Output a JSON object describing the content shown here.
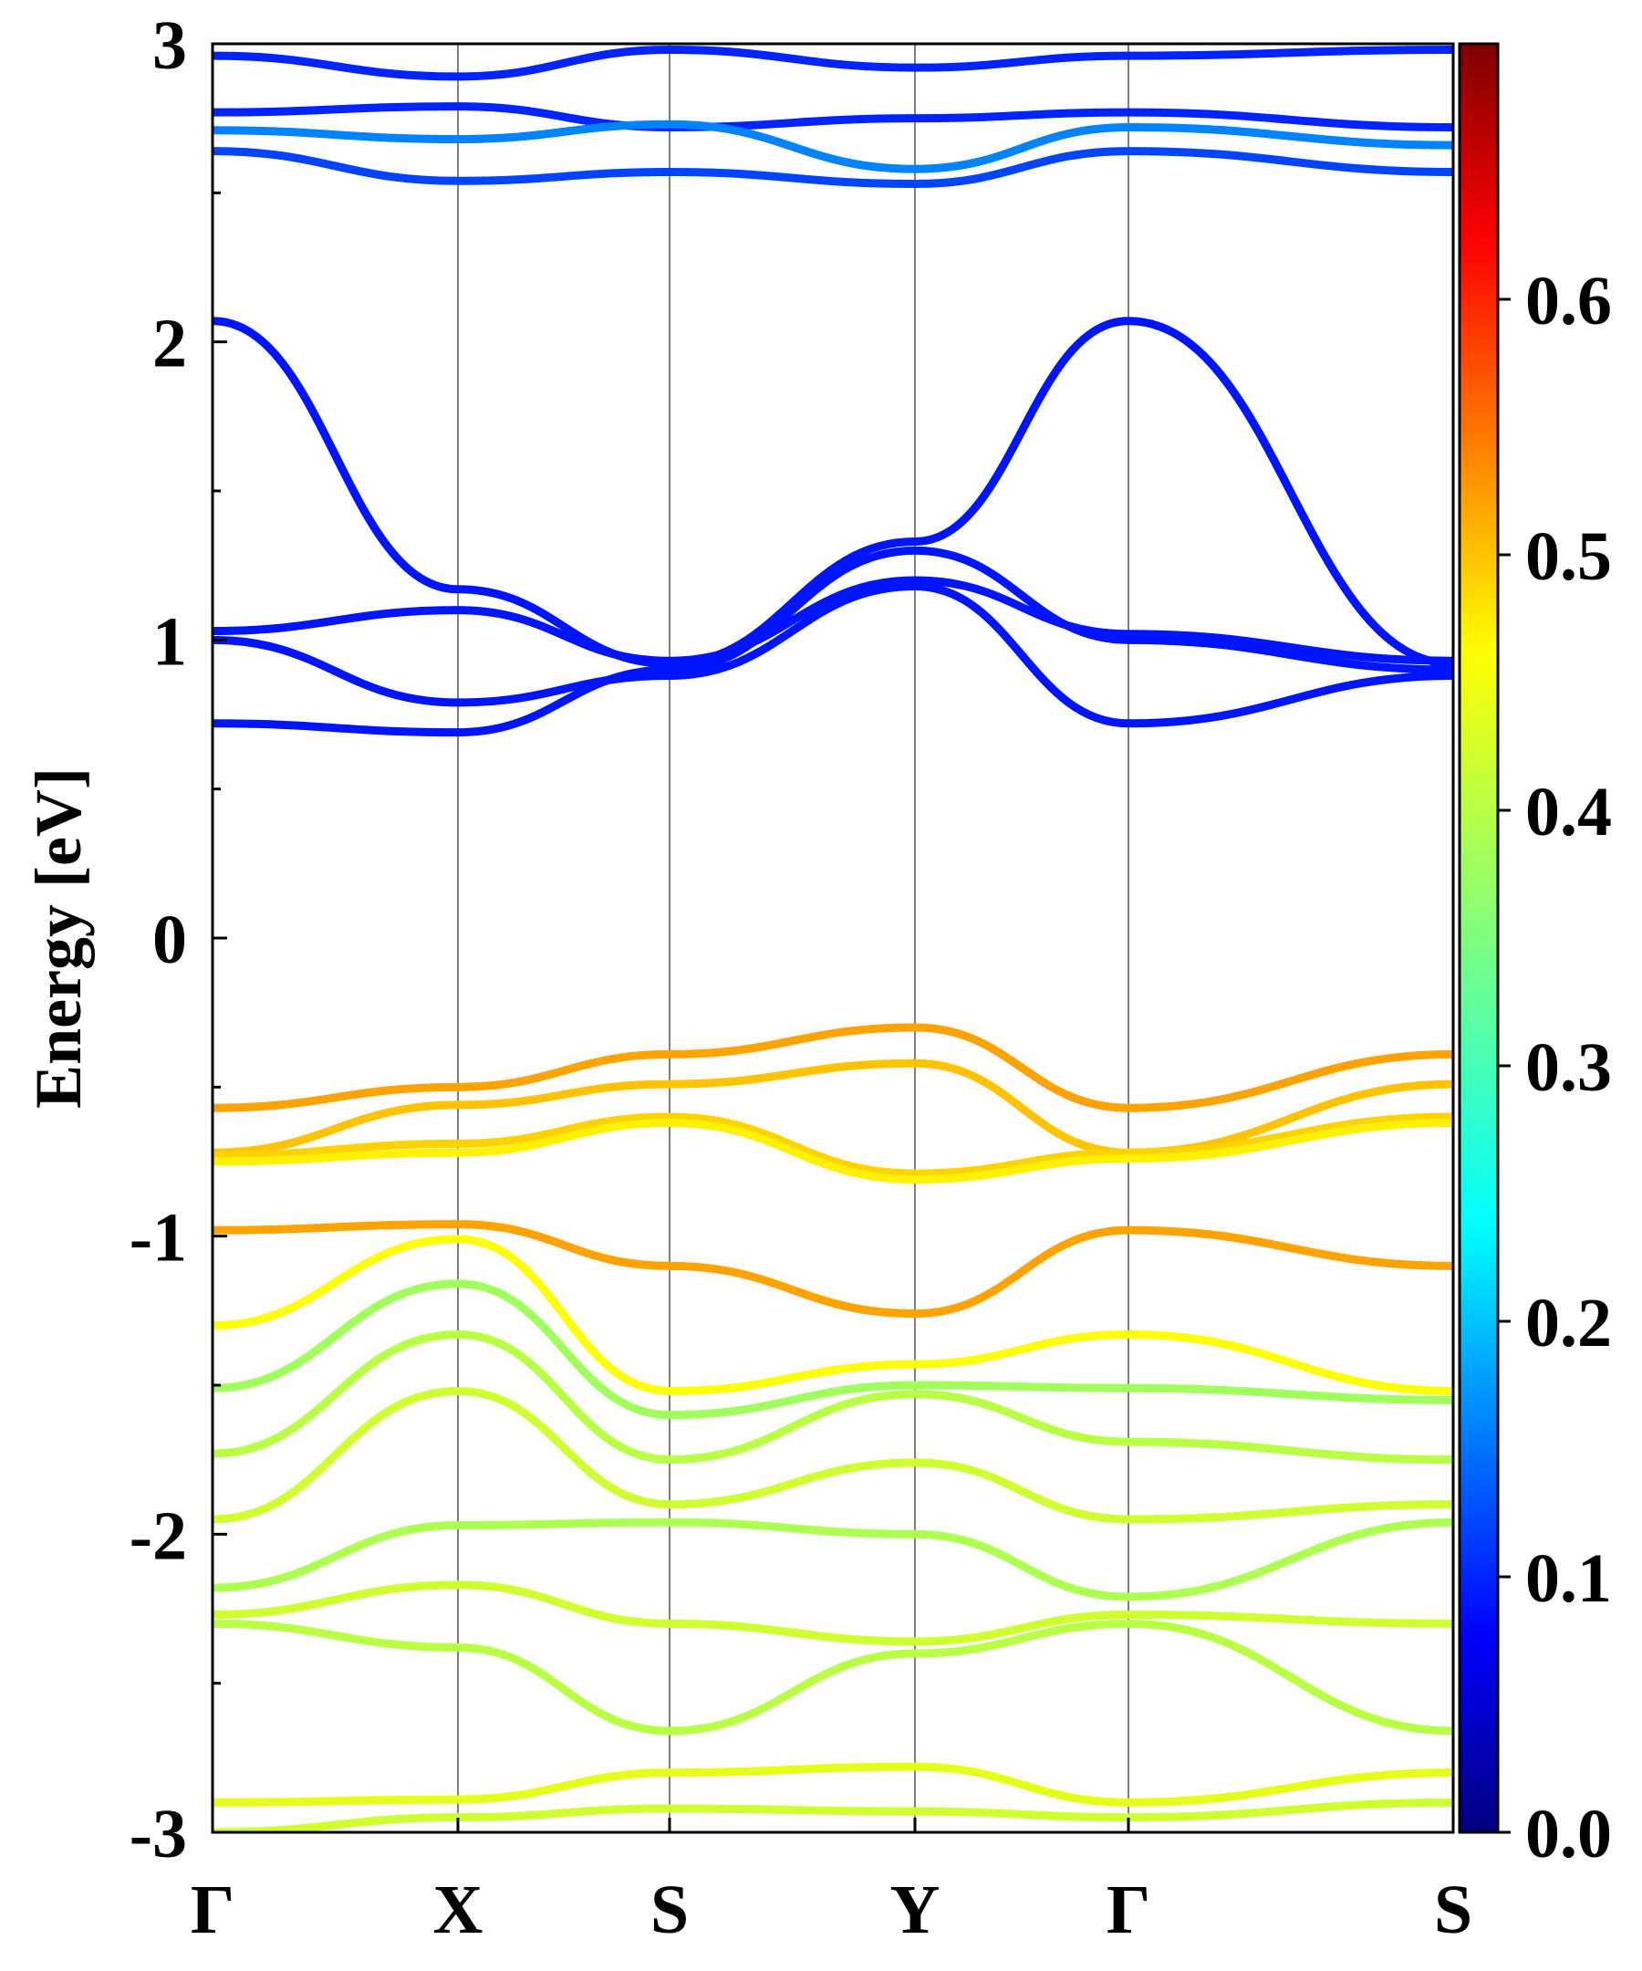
{
  "chart_data": {
    "type": "line",
    "ylabel": "Energy [eV]",
    "ylim": [
      -3,
      3
    ],
    "y_ticks": [
      "3",
      "2",
      "1",
      "0",
      "-1",
      "-2",
      "-3"
    ],
    "k_path": [
      "Γ",
      "X",
      "S",
      "Y",
      "Γ",
      "S"
    ],
    "colorbar": {
      "range": [
        0.0,
        0.7
      ],
      "ticks": [
        "0.0",
        "0.1",
        "0.2",
        "0.3",
        "0.4",
        "0.5",
        "0.6"
      ],
      "colormap": "jet"
    },
    "series": [
      {
        "values": [
          2.07,
          1.17,
          0.92,
          1.33,
          2.07,
          0.92
        ],
        "weight": 0.09
      },
      {
        "values": [
          1.03,
          1.1,
          0.93,
          1.2,
          1.02,
          0.93
        ],
        "weight": 0.09
      },
      {
        "values": [
          1.0,
          0.79,
          0.88,
          1.18,
          0.72,
          0.88
        ],
        "weight": 0.09
      },
      {
        "values": [
          0.72,
          0.69,
          0.9,
          1.3,
          1.0,
          0.9
        ],
        "weight": 0.09
      },
      {
        "values": [
          2.96,
          2.89,
          2.98,
          2.92,
          2.96,
          2.98
        ],
        "weight": 0.1
      },
      {
        "values": [
          2.77,
          2.79,
          2.72,
          2.75,
          2.77,
          2.72
        ],
        "weight": 0.1
      },
      {
        "values": [
          2.71,
          2.68,
          2.73,
          2.58,
          2.72,
          2.66
        ],
        "weight": 0.16
      },
      {
        "values": [
          2.64,
          2.54,
          2.57,
          2.53,
          2.64,
          2.57
        ],
        "weight": 0.12
      },
      {
        "values": [
          -0.57,
          -0.5,
          -0.39,
          -0.3,
          -0.57,
          -0.39
        ],
        "weight": 0.52
      },
      {
        "values": [
          -0.72,
          -0.56,
          -0.49,
          -0.42,
          -0.72,
          -0.49
        ],
        "weight": 0.5
      },
      {
        "values": [
          -0.73,
          -0.69,
          -0.6,
          -0.79,
          -0.72,
          -0.6
        ],
        "weight": 0.49
      },
      {
        "values": [
          -0.75,
          -0.72,
          -0.62,
          -0.81,
          -0.74,
          -0.62
        ],
        "weight": 0.47
      },
      {
        "values": [
          -0.98,
          -0.96,
          -1.1,
          -1.26,
          -0.98,
          -1.1
        ],
        "weight": 0.52
      },
      {
        "values": [
          -1.3,
          -1.01,
          -1.52,
          -1.43,
          -1.33,
          -1.52
        ],
        "weight": 0.46
      },
      {
        "values": [
          -1.51,
          -1.16,
          -1.6,
          -1.5,
          -1.51,
          -1.55
        ],
        "weight": 0.38
      },
      {
        "values": [
          -1.73,
          -1.33,
          -1.75,
          -1.53,
          -1.69,
          -1.75
        ],
        "weight": 0.4
      },
      {
        "values": [
          -1.95,
          -1.52,
          -1.9,
          -1.76,
          -1.95,
          -1.9
        ],
        "weight": 0.42
      },
      {
        "values": [
          -2.18,
          -1.97,
          -1.96,
          -2.0,
          -2.21,
          -1.96
        ],
        "weight": 0.39
      },
      {
        "values": [
          -2.27,
          -2.17,
          -2.3,
          -2.36,
          -2.27,
          -2.3
        ],
        "weight": 0.42
      },
      {
        "values": [
          -2.3,
          -2.38,
          -2.66,
          -2.4,
          -2.3,
          -2.66
        ],
        "weight": 0.4
      },
      {
        "values": [
          -2.9,
          -2.89,
          -2.8,
          -2.78,
          -2.9,
          -2.8
        ],
        "weight": 0.44
      },
      {
        "values": [
          -3.0,
          -2.95,
          -2.92,
          -2.93,
          -2.95,
          -2.9
        ],
        "weight": 0.42
      }
    ]
  }
}
